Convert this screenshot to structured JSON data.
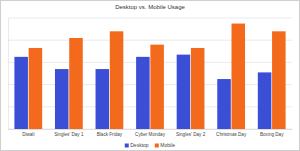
{
  "chart_data": {
    "type": "bar",
    "title": "Desktop vs. Mobile Usage",
    "categories": [
      "Diwali",
      "Singles' Day 1",
      "Black Friday",
      "Cyber Monday",
      "Singles' Day 2",
      "Christmas Day",
      "Boxing Day"
    ],
    "series": [
      {
        "name": "Desktop",
        "color": "#3a4fd6",
        "values": [
          65,
          54,
          54,
          65,
          67,
          45,
          51
        ]
      },
      {
        "name": "Mobile",
        "color": "#f36a1c",
        "values": [
          73,
          82,
          88,
          76,
          73,
          95,
          88
        ]
      }
    ],
    "ylim": [
      0,
      100
    ],
    "yticks": [
      0,
      20,
      40,
      60,
      80,
      100
    ],
    "grid": true,
    "legend": "bottom",
    "tick_labels": "x"
  }
}
